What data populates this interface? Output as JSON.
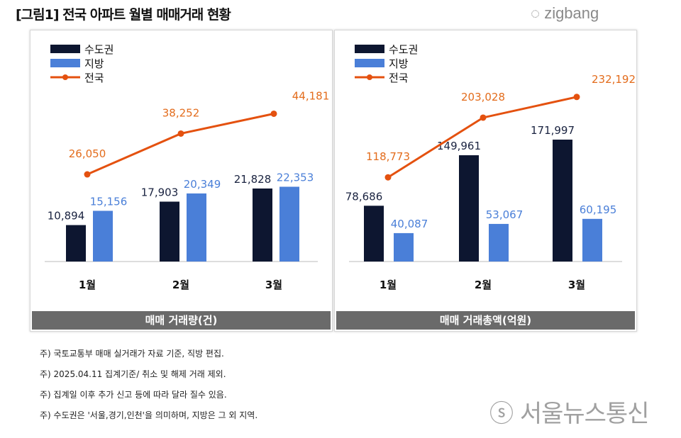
{
  "title": "[그림1] 전국 아파트 월별 매매거래 현황",
  "logo": "zigbang",
  "colors": {
    "capital": "#0d1630",
    "region": "#4a7fd8",
    "national": "#e4510f",
    "national_label": "#e36c1c"
  },
  "chart_data": [
    {
      "type": "bar+line",
      "band_label": "매매 거래량(건)",
      "categories": [
        "1월",
        "2월",
        "3월"
      ],
      "series": [
        {
          "name": "수도권",
          "type": "bar",
          "values": [
            10894,
            17903,
            21828
          ]
        },
        {
          "name": "지방",
          "type": "bar",
          "values": [
            15156,
            20349,
            22353
          ]
        },
        {
          "name": "전국",
          "type": "line",
          "values": [
            26050,
            38252,
            44181
          ]
        }
      ],
      "labels": {
        "수도권": [
          "10,894",
          "17,903",
          "21,828"
        ],
        "지방": [
          "15,156",
          "20,349",
          "22,353"
        ],
        "전국": [
          "26,050",
          "38,252",
          "44,181"
        ]
      },
      "legend": "top-left",
      "grid": false
    },
    {
      "type": "bar+line",
      "band_label": "매매 거래총액(억원)",
      "categories": [
        "1월",
        "2월",
        "3월"
      ],
      "series": [
        {
          "name": "수도권",
          "type": "bar",
          "values": [
            78686,
            149961,
            171997
          ]
        },
        {
          "name": "지방",
          "type": "bar",
          "values": [
            40087,
            53067,
            60195
          ]
        },
        {
          "name": "전국",
          "type": "line",
          "values": [
            118773,
            203028,
            232192
          ]
        }
      ],
      "labels": {
        "수도권": [
          "78,686",
          "149,961",
          "171,997"
        ],
        "지방": [
          "40,087",
          "53,067",
          "60,195"
        ],
        "전국": [
          "118,773",
          "203,028",
          "232,192"
        ]
      },
      "legend": "top-left",
      "grid": false
    }
  ],
  "notes": [
    "주) 국토교통부 매매 실거래가 자료 기준, 직방 편집.",
    "주) 2025.04.11 집계기준/ 취소 및 해제 거래 제외.",
    "주) 집계일 이후 추가 신고 등에 따라 달라 질수 있음.",
    "주) 수도권은 '서울,경기,인천'을 의미하며, 지방은 그 외 지역."
  ],
  "watermark": "서울뉴스통신"
}
